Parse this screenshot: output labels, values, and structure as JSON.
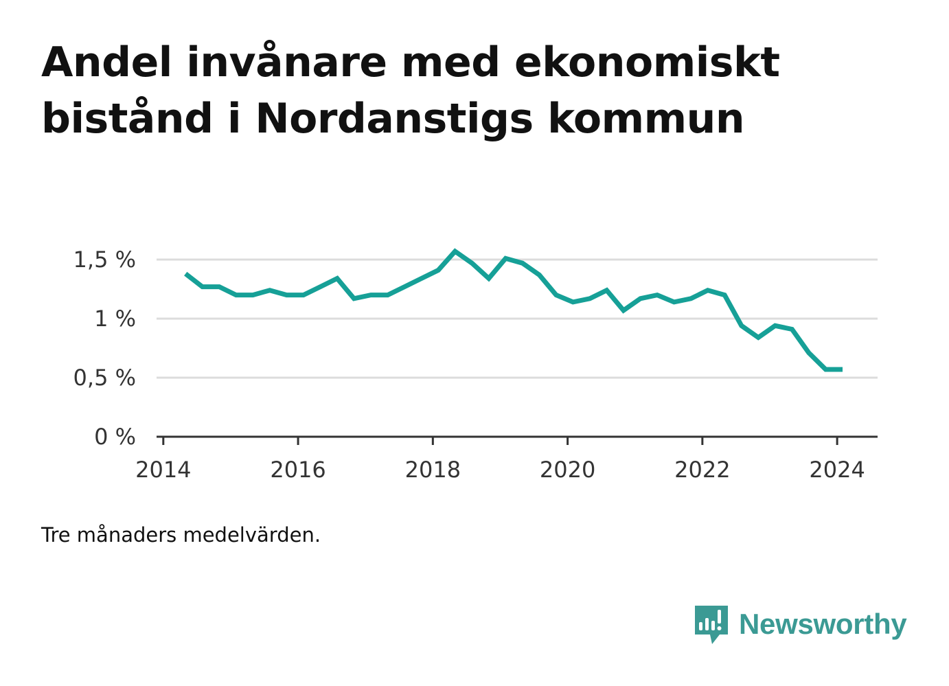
{
  "title": "Andel invånare med ekonomiskt bistånd i Nordanstigs kommun",
  "note": "Tre månaders medelvärden.",
  "brand": {
    "name": "Newsworthy",
    "icon": "bar-chart-speech-bubble-icon",
    "color": "#3b9a94"
  },
  "chart_data": {
    "type": "line",
    "title": "Andel invånare med ekonomiskt bistånd i Nordanstigs kommun",
    "xlabel": "",
    "ylabel": "",
    "xlim": [
      2013.9,
      2024.6
    ],
    "ylim": [
      0,
      1.5
    ],
    "x_ticks": [
      2014,
      2016,
      2018,
      2020,
      2022,
      2024
    ],
    "x_tick_labels": [
      "2014",
      "2016",
      "2018",
      "2020",
      "2022",
      "2024"
    ],
    "y_ticks": [
      0,
      0.5,
      1,
      1.5
    ],
    "y_tick_labels": [
      "0 %",
      "0,5 %",
      "1 %",
      "1,5 %"
    ],
    "grid": true,
    "legend": "none",
    "line_color": "#16a097",
    "series": [
      {
        "x": [
          2014.33,
          2014.58,
          2014.83,
          2015.08,
          2015.33,
          2015.58,
          2015.83,
          2016.08,
          2016.33,
          2016.58,
          2016.83,
          2017.08,
          2017.33,
          2017.58,
          2017.83,
          2018.08,
          2018.33,
          2018.58,
          2018.83,
          2019.08,
          2019.33,
          2019.58,
          2019.83,
          2020.08,
          2020.33,
          2020.58,
          2020.83,
          2021.08,
          2021.33,
          2021.58,
          2021.83,
          2022.08,
          2022.33,
          2022.58,
          2022.83,
          2023.08,
          2023.33,
          2023.58,
          2023.83,
          2024.08
        ],
        "values": [
          1.38,
          1.27,
          1.27,
          1.2,
          1.2,
          1.24,
          1.2,
          1.2,
          1.27,
          1.34,
          1.17,
          1.2,
          1.2,
          1.27,
          1.34,
          1.41,
          1.57,
          1.47,
          1.34,
          1.51,
          1.47,
          1.37,
          1.2,
          1.14,
          1.17,
          1.24,
          1.07,
          1.17,
          1.2,
          1.14,
          1.17,
          1.24,
          1.2,
          0.94,
          0.84,
          0.94,
          0.91,
          0.71,
          0.57,
          0.57
        ]
      }
    ]
  }
}
